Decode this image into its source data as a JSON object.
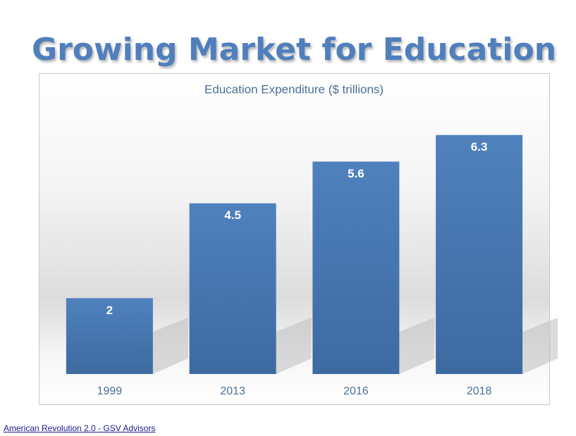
{
  "page_title": "Growing Market for Education",
  "source": "American Revolution 2.0 - GSV Advisors",
  "chart_data": {
    "type": "bar",
    "title": "Education Expenditure ($ trillions)",
    "categories": [
      "1999",
      "2013",
      "2016",
      "2018"
    ],
    "values": [
      2,
      4.5,
      5.6,
      6.3
    ],
    "color": "#4f81bd",
    "ylim": [
      0,
      7
    ],
    "data_labels": true
  }
}
